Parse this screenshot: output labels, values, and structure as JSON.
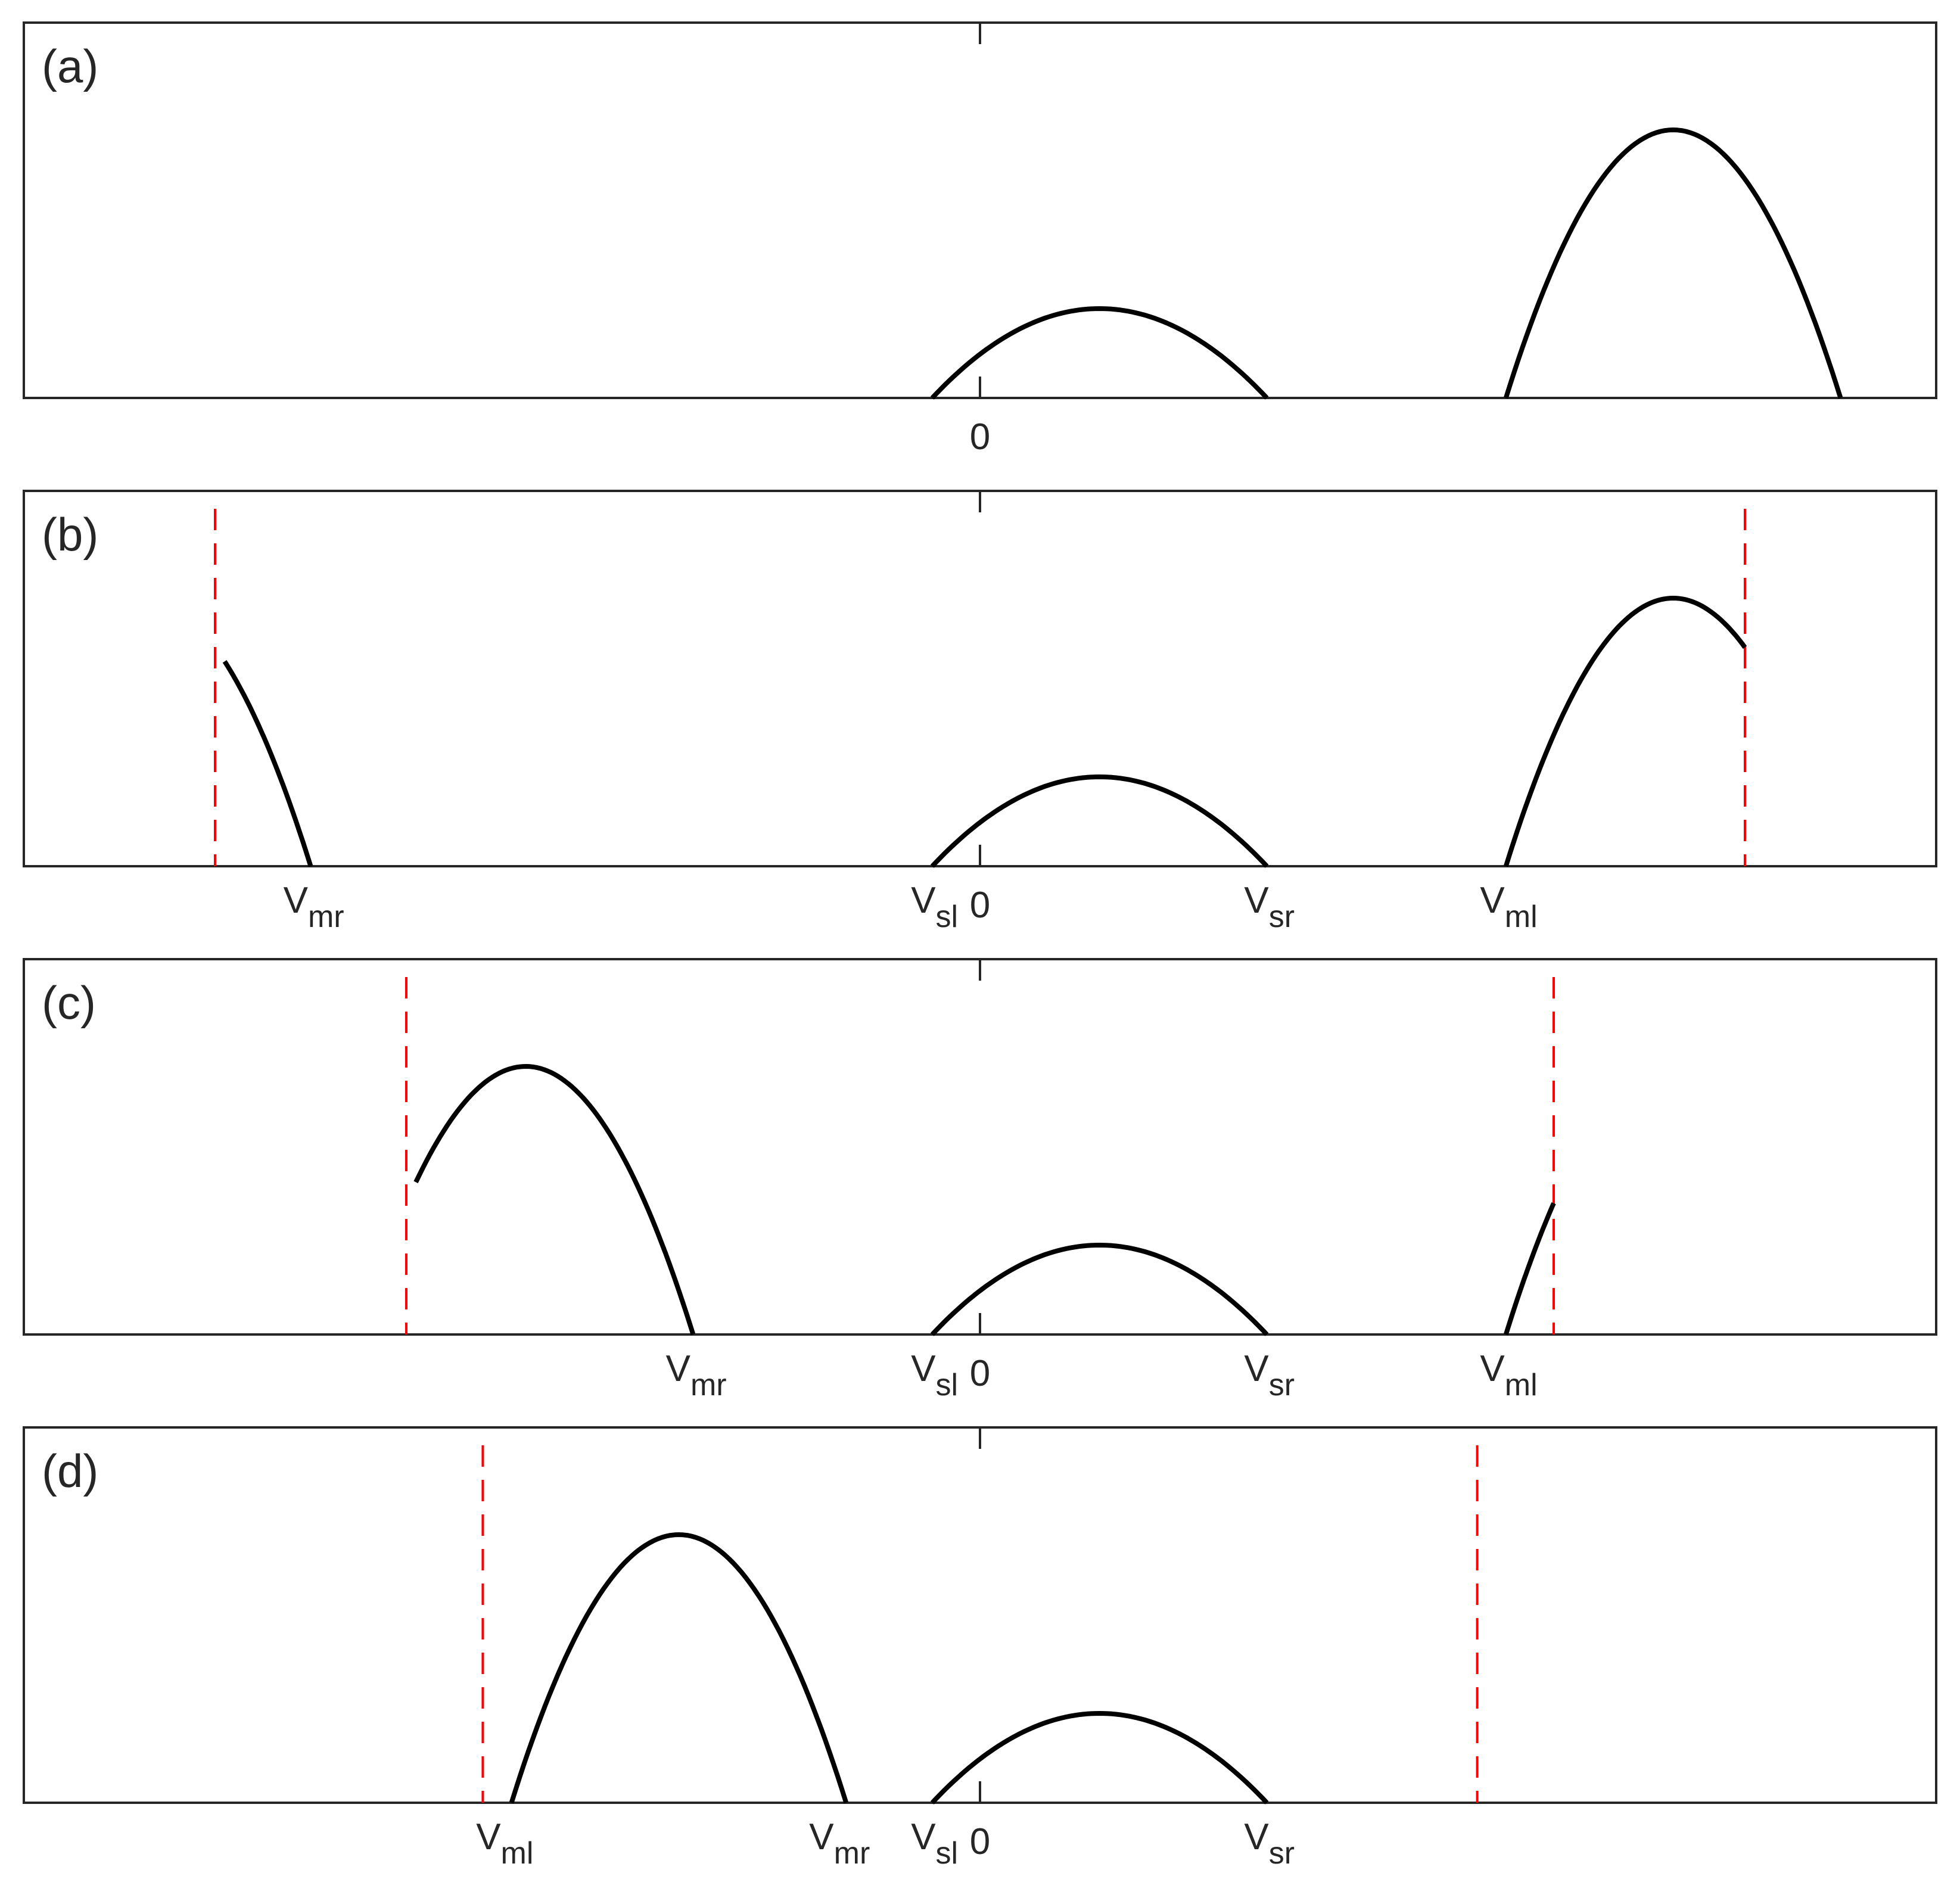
{
  "chart_data": [
    {
      "type": "line",
      "panel_label": "(a)",
      "xlim": [
        -20,
        20
      ],
      "ylim": [
        0,
        1
      ],
      "grid": false,
      "x_ticks": [
        {
          "value": 0,
          "label": "0",
          "sub": ""
        }
      ],
      "guides": [],
      "series": [
        {
          "x_start": -1,
          "x_end": 6,
          "x_peak": 2.5,
          "y_peak": 0.25,
          "y_start": 0,
          "y_end": 0
        },
        {
          "x_start": 11,
          "x_end": 18,
          "x_peak": 14.5,
          "y_peak": 0.75,
          "y_start": 0,
          "y_end": 0
        }
      ]
    },
    {
      "type": "line",
      "panel_label": "(b)",
      "xlim": [
        -20,
        20
      ],
      "ylim": [
        0,
        1
      ],
      "grid": false,
      "x_ticks": [
        {
          "value": -14,
          "label": "V",
          "sub": "mr"
        },
        {
          "value": -1,
          "label": "V",
          "sub": "sl"
        },
        {
          "value": 0,
          "label": "0",
          "sub": ""
        },
        {
          "value": 6,
          "label": "V",
          "sub": "sr"
        },
        {
          "value": 11,
          "label": "V",
          "sub": "ml"
        }
      ],
      "guides": [
        -16,
        16
      ],
      "series": [
        {
          "x_start": -1,
          "x_end": 6,
          "x_peak": 2.5,
          "y_peak": 0.25,
          "y_start": 0,
          "y_end": 0
        },
        {
          "x_start": 11,
          "x_end": 16,
          "x_peak": 14.5,
          "y_peak": 0.75,
          "y_start": 0,
          "y_end": 0.57
        },
        {
          "x_start": -15.8,
          "x_end": -14,
          "x_peak": -17.5,
          "y_peak": 0.75,
          "y_start": 0.54,
          "y_end": 0
        }
      ]
    },
    {
      "type": "line",
      "panel_label": "(c)",
      "xlim": [
        -20,
        20
      ],
      "ylim": [
        0,
        1
      ],
      "grid": false,
      "x_ticks": [
        {
          "value": -6,
          "label": "V",
          "sub": "mr"
        },
        {
          "value": -1,
          "label": "V",
          "sub": "sl"
        },
        {
          "value": 0,
          "label": "0",
          "sub": ""
        },
        {
          "value": 6,
          "label": "V",
          "sub": "sr"
        },
        {
          "value": 11,
          "label": "V",
          "sub": "ml"
        }
      ],
      "guides": [
        -12,
        12
      ],
      "series": [
        {
          "x_start": -1,
          "x_end": 6,
          "x_peak": 2.5,
          "y_peak": 0.25,
          "y_start": 0,
          "y_end": 0
        },
        {
          "x_start": -11.8,
          "x_end": -6,
          "x_peak": -9.5,
          "y_peak": 0.75,
          "y_start": 0.38,
          "y_end": 0
        },
        {
          "x_start": 11,
          "x_end": 12,
          "x_peak": 14.5,
          "y_peak": 0.75,
          "y_start": 0,
          "y_end": 0.32
        }
      ]
    },
    {
      "type": "line",
      "panel_label": "(d)",
      "xlim": [
        -20,
        20
      ],
      "ylim": [
        0,
        1
      ],
      "grid": false,
      "x_ticks": [
        {
          "value": -10,
          "label": "V",
          "sub": "ml"
        },
        {
          "value": -3,
          "label": "V",
          "sub": "mr"
        },
        {
          "value": -1,
          "label": "V",
          "sub": "sl"
        },
        {
          "value": 0,
          "label": "0",
          "sub": ""
        },
        {
          "value": 6,
          "label": "V",
          "sub": "sr"
        }
      ],
      "guides": [
        -10.4,
        10.4
      ],
      "series": [
        {
          "x_start": -1,
          "x_end": 6,
          "x_peak": 2.5,
          "y_peak": 0.25,
          "y_start": 0,
          "y_end": 0
        },
        {
          "x_start": -9.8,
          "x_end": -2.8,
          "x_peak": -6.3,
          "y_peak": 0.75,
          "y_start": 0,
          "y_end": 0
        }
      ]
    }
  ],
  "colors": {
    "curve": "#000000",
    "guide": "#ff0000",
    "axes": "#262626"
  }
}
